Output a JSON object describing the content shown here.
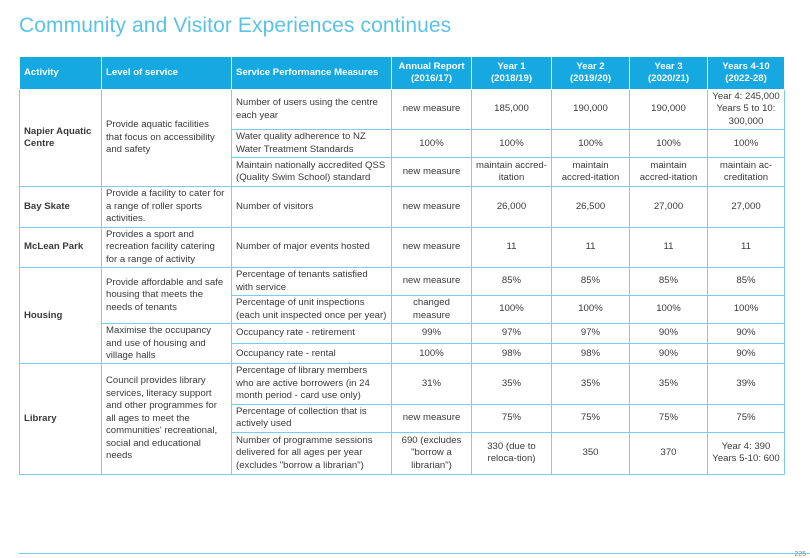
{
  "title": "Community and Visitor Experiences continues",
  "headers": {
    "activity": "Activity",
    "level": "Level of service",
    "measure": "Service Performance Measures",
    "annual": "Annual Report (2016/17)",
    "y1": "Year 1 (2018/19)",
    "y2": "Year 2 (2019/20)",
    "y3": "Year 3 (2020/21)",
    "y410": "Years 4-10 (2022-28)"
  },
  "rows": [
    {
      "activity": "Napier Aquatic Centre",
      "level": "Provide aquatic facilities that focus on accessibility and safety",
      "measure": "Number of users using the centre each year",
      "annual": "new measure",
      "y1": "185,000",
      "y2": "190,000",
      "y3": "190,000",
      "y410": "Year 4: 245,000 Years 5 to 10: 300,000"
    },
    {
      "measure": "Water quality adherence to NZ Water Treatment Standards",
      "annual": "100%",
      "y1": "100%",
      "y2": "100%",
      "y3": "100%",
      "y410": "100%"
    },
    {
      "measure": "Maintain nationally accredited QSS (Quality Swim School) standard",
      "annual": "new measure",
      "y1": "maintain accred-itation",
      "y2": "maintain accred-itation",
      "y3": "maintain accred-itation",
      "y410": "maintain ac-creditation"
    },
    {
      "activity": "Bay Skate",
      "level": "Provide a facility to cater for a range of roller sports activities.",
      "measure": "Number of visitors",
      "annual": "new measure",
      "y1": "26,000",
      "y2": "26,500",
      "y3": "27,000",
      "y410": "27,000"
    },
    {
      "activity": "McLean Park",
      "level": "Provides a sport and recreation facility catering for a range of activity",
      "measure": "Number of major events hosted",
      "annual": "new measure",
      "y1": "11",
      "y2": "11",
      "y3": "11",
      "y410": "11"
    },
    {
      "activity": "Housing",
      "level": "Provide affordable and safe housing that meets the needs of tenants",
      "measure": "Percentage of tenants satisfied with service",
      "annual": "new measure",
      "y1": "85%",
      "y2": "85%",
      "y3": "85%",
      "y410": "85%"
    },
    {
      "measure": "Percentage of unit inspections (each unit inspected once per year)",
      "annual": "changed measure",
      "y1": "100%",
      "y2": "100%",
      "y3": "100%",
      "y410": "100%"
    },
    {
      "level": "Maximise the occupancy and use of housing and village halls",
      "measure": "Occupancy rate - retirement",
      "annual": "99%",
      "y1": "97%",
      "y2": "97%",
      "y3": "90%",
      "y410": "90%"
    },
    {
      "measure": "Occupancy rate - rental",
      "annual": "100%",
      "y1": "98%",
      "y2": "98%",
      "y3": "90%",
      "y410": "90%"
    },
    {
      "activity": "Library",
      "level": "Council provides library services, literacy support and other programmes for all ages to meet the communities' recreational, social and educational needs",
      "measure": "Percentage of library members who are active borrowers (in 24 month period - card use only)",
      "annual": "31%",
      "y1": "35%",
      "y2": "35%",
      "y3": "35%",
      "y410": "39%"
    },
    {
      "measure": "Percentage of collection that is actively used",
      "annual": "new measure",
      "y1": "75%",
      "y2": "75%",
      "y3": "75%",
      "y410": "75%"
    },
    {
      "measure": "Number of programme sessions delivered for all ages per year (excludes \"borrow a librarian\")",
      "annual": "690 (excludes \"borrow a librarian\")",
      "y1": "330 (due to reloca-tion)",
      "y2": "350",
      "y3": "370",
      "y410": "Year 4: 390 Years 5-10: 600"
    }
  ],
  "page_number": "225"
}
